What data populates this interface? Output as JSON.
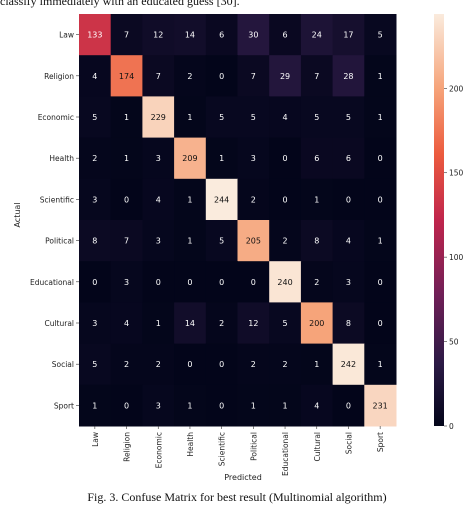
{
  "page": {
    "top_text": "classify immediately with an educated guess [30].",
    "caption": "Fig. 3. Confuse Matrix for best result (Multinomial algorithm)"
  },
  "chart_data": {
    "type": "heatmap",
    "title": "",
    "xlabel": "Predicted",
    "ylabel": "Actual",
    "categories": [
      "Law",
      "Religion",
      "Economic",
      "Health",
      "Scientific",
      "Political",
      "Educational",
      "Cultural",
      "Social",
      "Sport"
    ],
    "matrix": [
      [
        133,
        7,
        12,
        14,
        6,
        30,
        6,
        24,
        17,
        5
      ],
      [
        4,
        174,
        7,
        2,
        0,
        7,
        29,
        7,
        28,
        1
      ],
      [
        5,
        1,
        229,
        1,
        5,
        5,
        4,
        5,
        5,
        1
      ],
      [
        2,
        1,
        3,
        209,
        1,
        3,
        0,
        6,
        6,
        0
      ],
      [
        3,
        0,
        4,
        1,
        244,
        2,
        0,
        1,
        0,
        0
      ],
      [
        8,
        7,
        3,
        1,
        5,
        205,
        2,
        8,
        4,
        1
      ],
      [
        0,
        3,
        0,
        0,
        0,
        0,
        240,
        2,
        3,
        0
      ],
      [
        3,
        4,
        1,
        14,
        2,
        12,
        5,
        200,
        8,
        0
      ],
      [
        5,
        2,
        2,
        0,
        0,
        2,
        2,
        1,
        242,
        1
      ],
      [
        1,
        0,
        3,
        1,
        0,
        1,
        1,
        4,
        0,
        231
      ]
    ],
    "colorbar": {
      "ticks": [
        0,
        50,
        100,
        150,
        200
      ],
      "labels": [
        "0",
        "50",
        "100",
        "150",
        "200"
      ],
      "range": [
        0,
        244
      ]
    },
    "colormap": "rocket",
    "annotations": true,
    "legend": "colorbar-right"
  }
}
